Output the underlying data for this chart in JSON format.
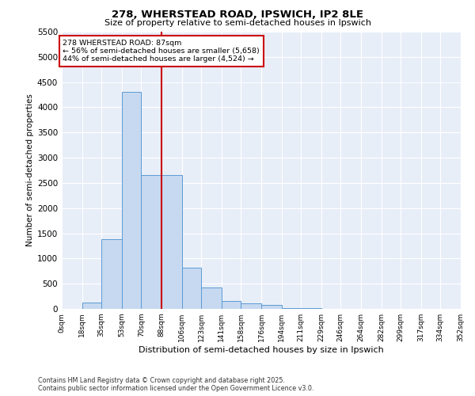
{
  "title1": "278, WHERSTEAD ROAD, IPSWICH, IP2 8LE",
  "title2": "Size of property relative to semi-detached houses in Ipswich",
  "xlabel": "Distribution of semi-detached houses by size in Ipswich",
  "ylabel": "Number of semi-detached properties",
  "property_label": "278 WHERSTEAD ROAD: 87sqm",
  "smaller_pct": 56,
  "smaller_count": 5658,
  "larger_pct": 44,
  "larger_count": 4524,
  "bin_labels": [
    "0sqm",
    "18sqm",
    "35sqm",
    "53sqm",
    "70sqm",
    "88sqm",
    "106sqm",
    "123sqm",
    "141sqm",
    "158sqm",
    "176sqm",
    "194sqm",
    "211sqm",
    "229sqm",
    "246sqm",
    "264sqm",
    "282sqm",
    "299sqm",
    "317sqm",
    "334sqm",
    "352sqm"
  ],
  "bin_edges": [
    0,
    18,
    35,
    53,
    70,
    88,
    106,
    123,
    141,
    158,
    176,
    194,
    211,
    229,
    246,
    264,
    282,
    299,
    317,
    334,
    352
  ],
  "bar_heights": [
    5,
    130,
    1380,
    4300,
    2650,
    2650,
    820,
    430,
    160,
    110,
    80,
    10,
    10,
    5,
    2,
    2,
    1,
    1,
    1,
    1
  ],
  "bar_color": "#c6d9f0",
  "bar_edge_color": "#5b9bd5",
  "vline_color": "#cc0000",
  "vline_x": 88,
  "background_color": "#e8eef8",
  "grid_color": "#ffffff",
  "footer_line1": "Contains HM Land Registry data © Crown copyright and database right 2025.",
  "footer_line2": "Contains public sector information licensed under the Open Government Licence v3.0.",
  "ylim": [
    0,
    5500
  ],
  "yticks": [
    0,
    500,
    1000,
    1500,
    2000,
    2500,
    3000,
    3500,
    4000,
    4500,
    5000,
    5500
  ]
}
